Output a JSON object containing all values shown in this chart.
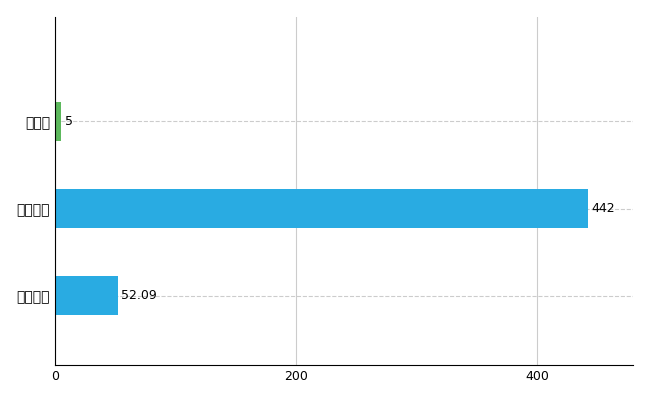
{
  "categories": [
    "全国平均",
    "全国最大",
    "鳥取県"
  ],
  "values": [
    52.09,
    442,
    5
  ],
  "bar_colors": [
    "#29ABE2",
    "#29ABE2",
    "#5CB85C"
  ],
  "bar_labels": [
    "52.09",
    "442",
    "5"
  ],
  "xlim": [
    0,
    480
  ],
  "xticks": [
    0,
    200,
    400
  ],
  "background_color": "#ffffff",
  "grid_color": "#cccccc",
  "figsize": [
    6.5,
    4.0
  ],
  "dpi": 100,
  "bar_height": 0.45
}
